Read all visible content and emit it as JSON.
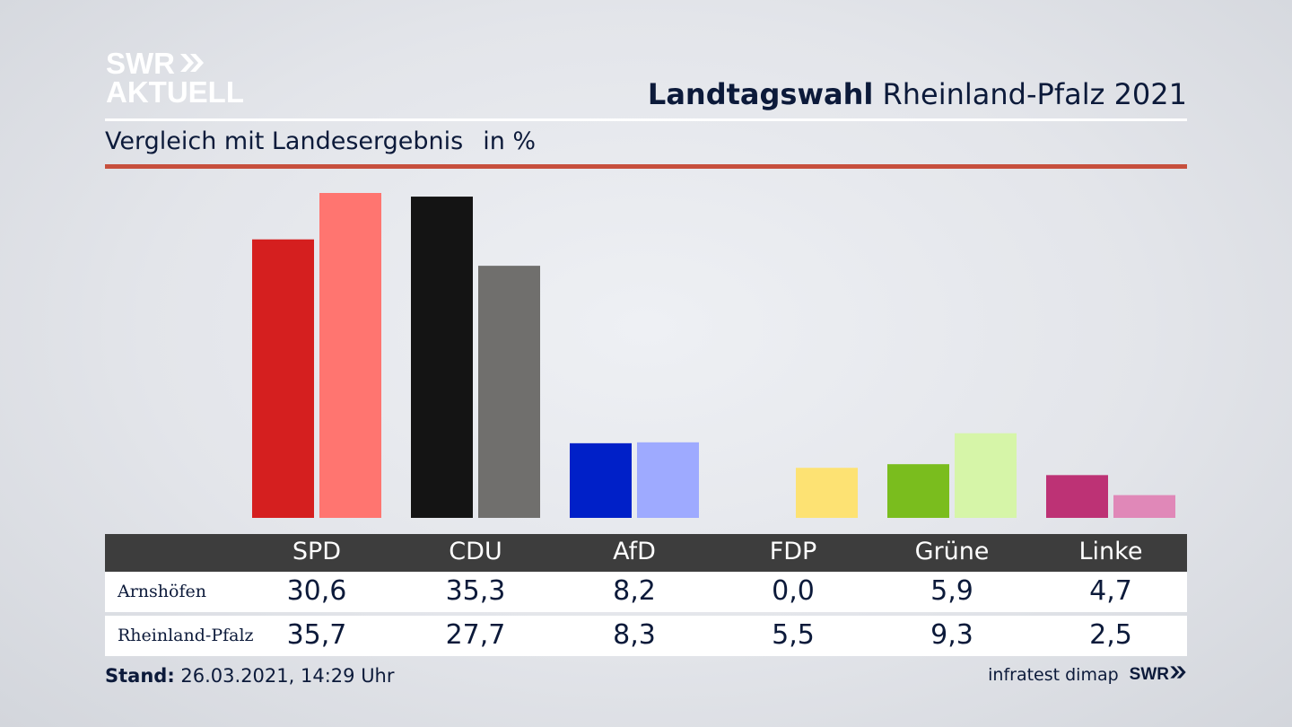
{
  "brand": {
    "line1": "SWR",
    "line2": "AKTUELL"
  },
  "header": {
    "title_bold": "Landtagswahl",
    "title_rest": "Rheinland-Pfalz 2021"
  },
  "subtitle": {
    "text": "Vergleich mit Landesergebnis",
    "unit": "in %"
  },
  "colors": {
    "accent_rule": "#c74f3d",
    "table_header_bg": "#3d3d3d"
  },
  "chart_data": {
    "type": "bar",
    "categories": [
      "SPD",
      "CDU",
      "AfD",
      "FDP",
      "Grüne",
      "Linke"
    ],
    "series": [
      {
        "name": "Arnshöfen",
        "values": [
          30.6,
          35.3,
          8.2,
          0.0,
          5.9,
          4.7
        ],
        "colors": [
          "#d51f1f",
          "#141414",
          "#0020c8",
          "#fde273",
          "#7abd1e",
          "#bd3275"
        ]
      },
      {
        "name": "Rheinland-Pfalz",
        "values": [
          35.7,
          27.7,
          8.3,
          5.5,
          9.3,
          2.5
        ],
        "colors": [
          "#ff7570",
          "#706f6d",
          "#9eaaff",
          "#fde273",
          "#d6f5a8",
          "#e088b8"
        ]
      }
    ],
    "ylim": [
      0,
      35.7
    ]
  },
  "table": {
    "headers": [
      "SPD",
      "CDU",
      "AfD",
      "FDP",
      "Grüne",
      "Linke"
    ],
    "rows": [
      {
        "label": "Arnshöfen",
        "values": [
          "30,6",
          "35,3",
          "8,2",
          "0,0",
          "5,9",
          "4,7"
        ]
      },
      {
        "label": "Rheinland-Pfalz",
        "values": [
          "35,7",
          "27,7",
          "8,3",
          "5,5",
          "9,3",
          "2,5"
        ]
      }
    ]
  },
  "footer": {
    "stand_label": "Stand:",
    "stand_value": "26.03.2021, 14:29 Uhr",
    "source": "infratest dimap",
    "brand": "SWR"
  }
}
